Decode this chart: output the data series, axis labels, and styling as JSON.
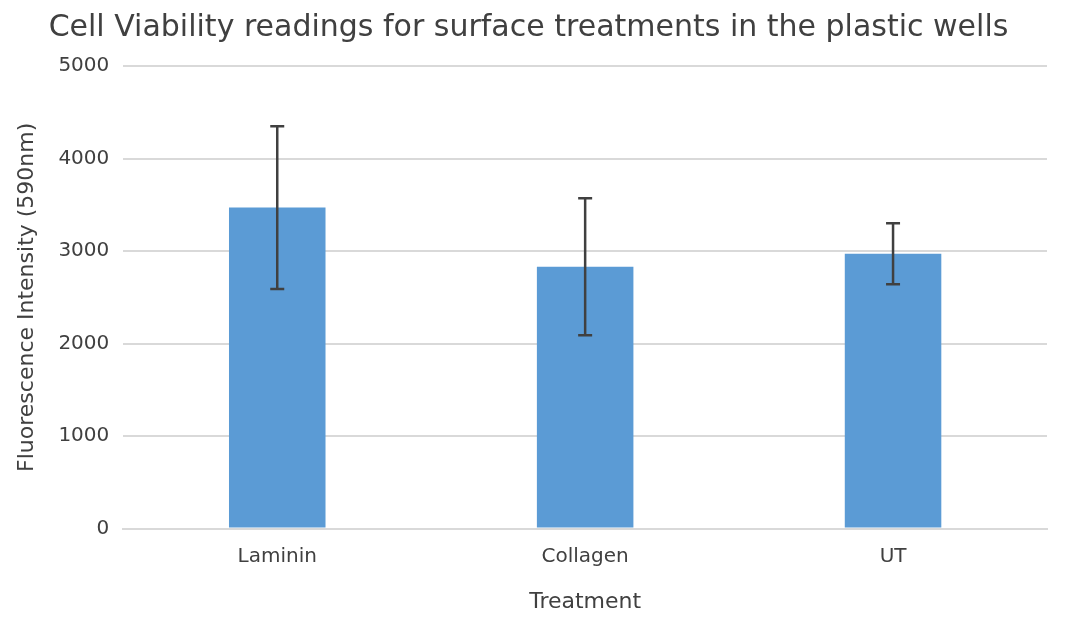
{
  "chart_data": {
    "type": "bar",
    "title": "Cell Viability readings for surface treatments in the plastic wells",
    "xlabel": "Treatment",
    "ylabel": "Fluorescence Intensity (590nm)",
    "categories": [
      "Laminin",
      "Collagen",
      "UT"
    ],
    "series": [
      {
        "color": "#5b9bd5",
        "values": [
          3470,
          2830,
          2970
        ],
        "errors": [
          880,
          740,
          330
        ]
      }
    ],
    "ylim": [
      0,
      5000
    ],
    "yticks": [
      0,
      1000,
      2000,
      3000,
      4000,
      5000
    ],
    "grid": "y",
    "legend": false
  }
}
